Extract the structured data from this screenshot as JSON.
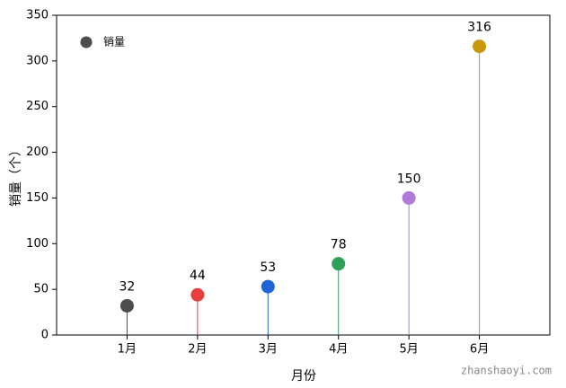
{
  "chart_data": {
    "type": "lollipop",
    "x_label": "月份",
    "y_label": "销量（个）",
    "categories": [
      "1月",
      "2月",
      "3月",
      "4月",
      "5月",
      "6月"
    ],
    "series": [
      {
        "name": "销量",
        "values": [
          32,
          44,
          53,
          78,
          150,
          316
        ],
        "colors": [
          "#4d4d4d",
          "#e83e3e",
          "#1e64d2",
          "#2ea05a",
          "#b07ad8",
          "#c8980a"
        ]
      }
    ],
    "ylim": [
      0,
      350
    ],
    "yticks": [
      0,
      50,
      100,
      150,
      200,
      250,
      300,
      350
    ],
    "legend": "upper left",
    "watermark": "zhanshaoyi.com"
  }
}
